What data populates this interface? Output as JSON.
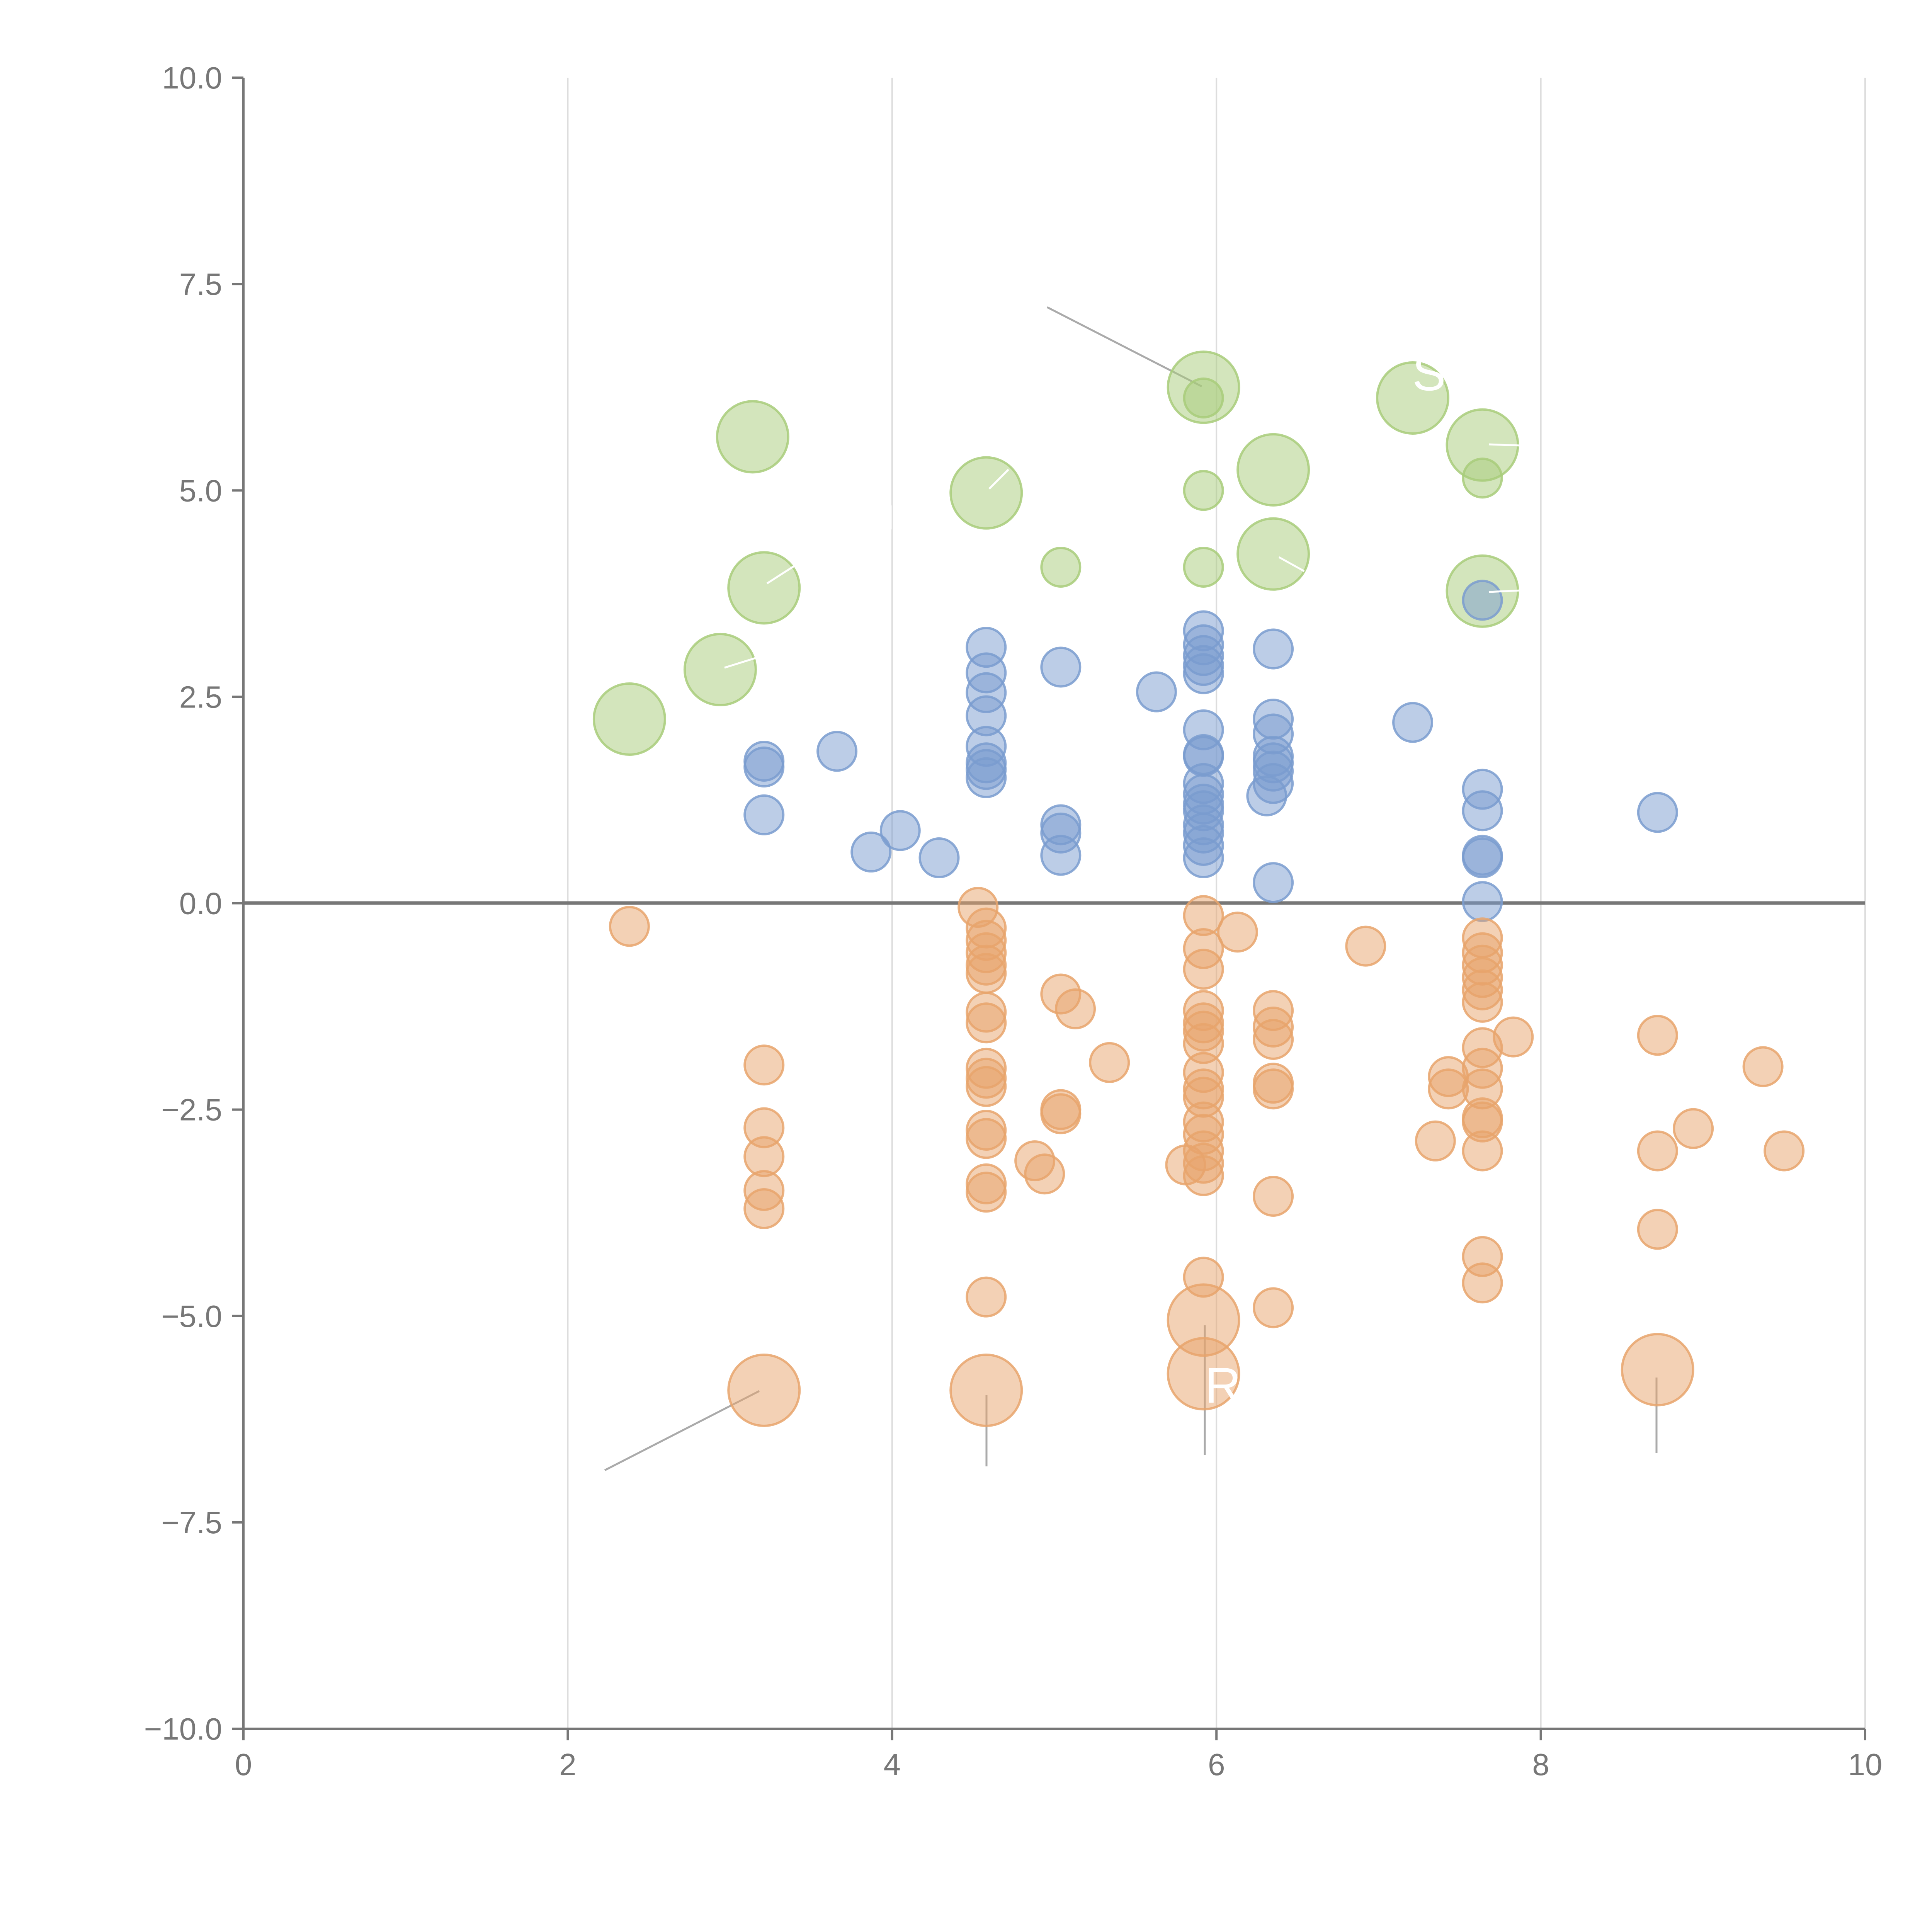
{
  "chart_data": {
    "type": "scatter",
    "title": "",
    "xlabel": "",
    "ylabel": "",
    "xlim": [
      0,
      10
    ],
    "ylim": [
      -10,
      10
    ],
    "x_ticks": [
      "0",
      "2",
      "4",
      "6",
      "8",
      "10"
    ],
    "y_ticks": [
      "10.0",
      "7.5",
      "5.0",
      "2.5",
      "0.0",
      "−2.5",
      "−5.0",
      "−7.5",
      "−10.0"
    ],
    "x_tick_values": [
      0,
      2,
      4,
      6,
      8,
      10
    ],
    "y_tick_values": [
      10,
      7.5,
      5,
      2.5,
      0,
      -2.5,
      -5,
      -7.5,
      -10
    ],
    "grid": "vertical",
    "colors": {
      "green": "#a8cc7a",
      "blue": "#7a9ccf",
      "orange": "#e8a46c",
      "axis": "#777777",
      "grid": "#dddddd"
    },
    "series": [
      {
        "name": "green",
        "color": "#a8cc7a",
        "points": [
          [
            2.38,
            2.23,
            3
          ],
          [
            2.94,
            2.83,
            3
          ],
          [
            3.14,
            5.65,
            3
          ],
          [
            3.21,
            3.82,
            3
          ],
          [
            4.58,
            4.97,
            3
          ],
          [
            5.04,
            4.07,
            1
          ],
          [
            5.92,
            6.25,
            3
          ],
          [
            5.92,
            6.12,
            1
          ],
          [
            5.92,
            5.0,
            1
          ],
          [
            5.92,
            4.07,
            1
          ],
          [
            6.35,
            5.25,
            3
          ],
          [
            6.35,
            4.23,
            3
          ],
          [
            7.21,
            6.12,
            3
          ],
          [
            7.64,
            5.55,
            3
          ],
          [
            7.64,
            5.15,
            1
          ],
          [
            7.64,
            3.78,
            3
          ]
        ]
      },
      {
        "name": "blue",
        "color": "#7a9ccf",
        "points": [
          [
            3.21,
            1.72,
            1
          ],
          [
            3.21,
            1.65,
            1
          ],
          [
            3.21,
            1.07,
            1
          ],
          [
            3.66,
            1.84,
            1
          ],
          [
            3.87,
            0.62,
            1
          ],
          [
            4.05,
            0.88,
            1
          ],
          [
            4.29,
            0.55,
            1
          ],
          [
            4.58,
            3.1,
            1
          ],
          [
            4.58,
            2.79,
            1
          ],
          [
            4.58,
            2.55,
            1
          ],
          [
            4.58,
            2.27,
            1
          ],
          [
            4.58,
            1.9,
            1
          ],
          [
            4.58,
            1.7,
            1
          ],
          [
            4.58,
            1.62,
            1
          ],
          [
            4.58,
            1.52,
            1
          ],
          [
            5.04,
            2.86,
            1
          ],
          [
            5.04,
            0.95,
            1
          ],
          [
            5.04,
            0.85,
            1
          ],
          [
            5.04,
            0.58,
            1
          ],
          [
            5.63,
            2.56,
            1
          ],
          [
            5.92,
            3.3,
            1
          ],
          [
            5.92,
            3.13,
            1
          ],
          [
            5.92,
            3.0,
            1
          ],
          [
            5.92,
            2.88,
            1
          ],
          [
            5.92,
            2.78,
            1
          ],
          [
            5.92,
            2.1,
            1
          ],
          [
            5.92,
            1.8,
            1
          ],
          [
            5.92,
            1.78,
            1
          ],
          [
            5.92,
            1.45,
            1
          ],
          [
            5.92,
            1.32,
            1
          ],
          [
            5.92,
            1.2,
            1
          ],
          [
            5.92,
            1.12,
            1
          ],
          [
            5.92,
            0.95,
            1
          ],
          [
            5.92,
            0.85,
            1
          ],
          [
            5.92,
            0.7,
            1
          ],
          [
            5.92,
            0.55,
            1
          ],
          [
            6.35,
            3.08,
            1
          ],
          [
            6.35,
            2.23,
            1
          ],
          [
            6.35,
            2.05,
            1
          ],
          [
            6.35,
            1.78,
            1
          ],
          [
            6.35,
            1.7,
            1
          ],
          [
            6.35,
            1.6,
            1
          ],
          [
            6.35,
            1.45,
            1
          ],
          [
            6.31,
            1.3,
            1
          ],
          [
            6.35,
            0.25,
            1
          ],
          [
            7.21,
            2.19,
            1
          ],
          [
            7.64,
            3.67,
            1
          ],
          [
            7.64,
            1.38,
            1
          ],
          [
            7.64,
            1.12,
            1
          ],
          [
            7.64,
            0.58,
            1
          ],
          [
            7.64,
            0.55,
            1
          ],
          [
            7.64,
            0.02,
            1
          ],
          [
            8.72,
            1.1,
            1
          ]
        ]
      },
      {
        "name": "orange",
        "color": "#e8a46c",
        "points": [
          [
            2.38,
            -0.28,
            1
          ],
          [
            3.21,
            -1.96,
            1
          ],
          [
            3.21,
            -2.72,
            1
          ],
          [
            3.21,
            -3.07,
            1
          ],
          [
            3.21,
            -3.48,
            1
          ],
          [
            3.21,
            -3.7,
            1
          ],
          [
            3.21,
            -5.9,
            3
          ],
          [
            4.53,
            -0.05,
            1
          ],
          [
            4.58,
            -0.3,
            1
          ],
          [
            4.58,
            -0.45,
            1
          ],
          [
            4.58,
            -0.6,
            1
          ],
          [
            4.58,
            -0.75,
            1
          ],
          [
            4.58,
            -0.85,
            1
          ],
          [
            4.58,
            -1.32,
            1
          ],
          [
            4.58,
            -1.45,
            1
          ],
          [
            4.58,
            -2.0,
            1
          ],
          [
            4.58,
            -2.12,
            1
          ],
          [
            4.58,
            -2.22,
            1
          ],
          [
            4.58,
            -2.75,
            1
          ],
          [
            4.58,
            -2.85,
            1
          ],
          [
            4.58,
            -3.4,
            1
          ],
          [
            4.58,
            -3.5,
            1
          ],
          [
            4.58,
            -4.77,
            1
          ],
          [
            4.58,
            -5.9,
            3
          ],
          [
            4.88,
            -3.12,
            1
          ],
          [
            4.94,
            -3.28,
            1
          ],
          [
            5.04,
            -1.1,
            1
          ],
          [
            5.04,
            -2.5,
            1
          ],
          [
            5.04,
            -2.55,
            1
          ],
          [
            5.13,
            -1.28,
            1
          ],
          [
            5.34,
            -1.93,
            1
          ],
          [
            5.81,
            -3.17,
            1
          ],
          [
            5.92,
            -0.15,
            1
          ],
          [
            5.92,
            -0.55,
            1
          ],
          [
            5.92,
            -0.8,
            1
          ],
          [
            5.92,
            -1.3,
            1
          ],
          [
            5.92,
            -1.45,
            1
          ],
          [
            5.92,
            -1.55,
            1
          ],
          [
            5.92,
            -1.7,
            1
          ],
          [
            5.92,
            -2.05,
            1
          ],
          [
            5.92,
            -2.25,
            1
          ],
          [
            5.92,
            -2.35,
            1
          ],
          [
            5.92,
            -2.65,
            1
          ],
          [
            5.92,
            -2.8,
            1
          ],
          [
            5.92,
            -3.0,
            1
          ],
          [
            5.92,
            -3.15,
            1
          ],
          [
            5.92,
            -3.3,
            1
          ],
          [
            5.92,
            -4.53,
            1
          ],
          [
            5.92,
            -5.05,
            3
          ],
          [
            5.92,
            -5.7,
            3
          ],
          [
            6.13,
            -0.35,
            1
          ],
          [
            6.35,
            -1.3,
            1
          ],
          [
            6.35,
            -1.5,
            1
          ],
          [
            6.35,
            -1.65,
            1
          ],
          [
            6.35,
            -2.18,
            1
          ],
          [
            6.35,
            -2.25,
            1
          ],
          [
            6.35,
            -3.55,
            1
          ],
          [
            6.35,
            -4.9,
            1
          ],
          [
            6.92,
            -0.52,
            1
          ],
          [
            7.35,
            -2.88,
            1
          ],
          [
            7.43,
            -2.1,
            1
          ],
          [
            7.43,
            -2.25,
            1
          ],
          [
            7.64,
            -0.42,
            1
          ],
          [
            7.64,
            -0.6,
            1
          ],
          [
            7.64,
            -0.75,
            1
          ],
          [
            7.64,
            -0.9,
            1
          ],
          [
            7.64,
            -1.05,
            1
          ],
          [
            7.64,
            -1.2,
            1
          ],
          [
            7.64,
            -1.75,
            1
          ],
          [
            7.64,
            -2.0,
            1
          ],
          [
            7.64,
            -2.25,
            1
          ],
          [
            7.64,
            -2.6,
            1
          ],
          [
            7.64,
            -2.65,
            1
          ],
          [
            7.64,
            -3.0,
            1
          ],
          [
            7.64,
            -4.28,
            1
          ],
          [
            7.64,
            -4.6,
            1
          ],
          [
            7.83,
            -1.62,
            1
          ],
          [
            8.72,
            -1.6,
            1
          ],
          [
            8.72,
            -3.0,
            1
          ],
          [
            8.72,
            -3.95,
            1
          ],
          [
            8.72,
            -5.65,
            3
          ],
          [
            8.94,
            -2.73,
            1
          ],
          [
            9.37,
            -1.98,
            1
          ],
          [
            9.5,
            -3.0,
            1
          ]
        ]
      }
    ],
    "annotations": [
      {
        "text": "S",
        "color": "#ffffff"
      },
      {
        "text": "R",
        "color": "#ffffff"
      }
    ]
  }
}
